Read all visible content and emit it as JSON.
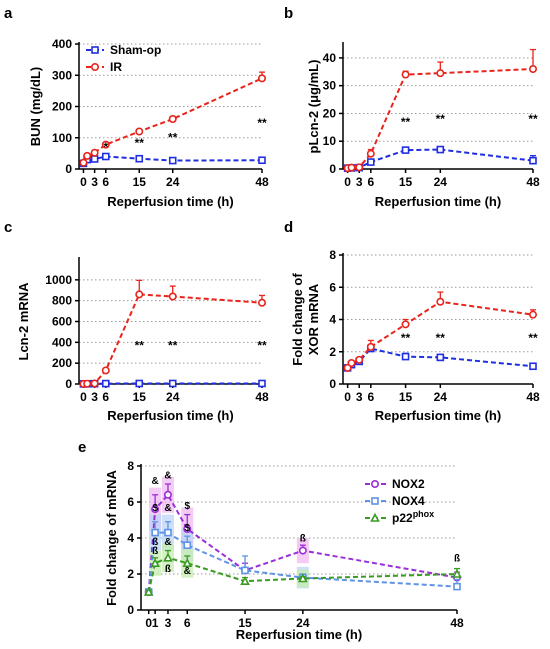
{
  "colors": {
    "sham": "#1f2ee0",
    "ir": "#e8241c",
    "nox2": "#9a2fd6",
    "nox4": "#5f93e6",
    "p22": "#3a9a22",
    "nox2_shade": "#efb9f0",
    "nox4_shade": "#bcd6f5",
    "p22_shade": "#c6ecb0",
    "grid": "#9a9a9a"
  },
  "chart_data": [
    {
      "id": "a",
      "panel_label": "a",
      "type": "line",
      "xlabel": "Reperfusion time (h)",
      "ylabel": "BUN (mg/dL)",
      "ylim": [
        0,
        400
      ],
      "y_ticks": [
        0,
        100,
        200,
        300,
        400
      ],
      "x_ticks": [
        0,
        3,
        6,
        15,
        24,
        48
      ],
      "x_tick_labels": [
        "0",
        "3",
        "6",
        "15",
        "24",
        "48"
      ],
      "grid": true,
      "legend": "top-left",
      "series": [
        {
          "name": "Sham-op",
          "color_key": "sham",
          "marker": "square",
          "x": [
            0,
            1,
            3,
            6,
            15,
            24,
            48
          ],
          "y": [
            18,
            30,
            32,
            40,
            33,
            27,
            28
          ],
          "err": [
            2,
            3,
            3,
            3,
            3,
            2,
            2
          ]
        },
        {
          "name": "IR",
          "color_key": "ir",
          "marker": "circle",
          "x": [
            0,
            1,
            3,
            6,
            15,
            24,
            48
          ],
          "y": [
            20,
            42,
            52,
            78,
            120,
            160,
            290
          ],
          "err": [
            2,
            3,
            4,
            5,
            6,
            8,
            20
          ]
        }
      ],
      "annotations": [
        {
          "text": "*",
          "x": 6,
          "y": 58
        },
        {
          "text": "**",
          "x": 15,
          "y": 70
        },
        {
          "text": "**",
          "x": 24,
          "y": 88
        },
        {
          "text": "**",
          "x": 48,
          "y": 135
        }
      ]
    },
    {
      "id": "b",
      "panel_label": "b",
      "type": "line",
      "xlabel": "Reperfusion time (h)",
      "ylabel": "pLcn-2 (μg/mL)",
      "ylim": [
        0,
        45
      ],
      "y_ticks": [
        0,
        10,
        20,
        30,
        40
      ],
      "x_ticks": [
        0,
        3,
        6,
        15,
        24,
        48
      ],
      "x_tick_labels": [
        "0",
        "3",
        "6",
        "15",
        "24",
        "48"
      ],
      "grid": true,
      "series": [
        {
          "name": "",
          "color_key": "sham",
          "marker": "square",
          "x": [
            0,
            1,
            3,
            6,
            15,
            24,
            48
          ],
          "y": [
            0.3,
            0.4,
            0.5,
            2.5,
            6.8,
            7,
            3
          ],
          "err": [
            0.1,
            0.1,
            0.1,
            0.4,
            0.7,
            0.5,
            1.8
          ]
        },
        {
          "name": "",
          "color_key": "ir",
          "marker": "circle",
          "x": [
            0,
            1,
            3,
            6,
            15,
            24,
            48
          ],
          "y": [
            0.3,
            0.5,
            0.6,
            5.5,
            34,
            34.5,
            36
          ],
          "err": [
            0.1,
            0.1,
            0.2,
            1.5,
            1.2,
            4,
            7
          ]
        }
      ],
      "annotations": [
        {
          "text": "**",
          "x": 15,
          "y": 15.5
        },
        {
          "text": "**",
          "x": 24,
          "y": 16.5
        },
        {
          "text": "**",
          "x": 48,
          "y": 16.5
        }
      ]
    },
    {
      "id": "c",
      "panel_label": "c",
      "type": "line",
      "xlabel": "Reperfusion time (h)",
      "ylabel": "Lcn-2 mRNA",
      "ylim": [
        0,
        1200
      ],
      "y_ticks": [
        0,
        200,
        400,
        600,
        800,
        1000
      ],
      "x_ticks": [
        0,
        3,
        6,
        15,
        24,
        48
      ],
      "x_tick_labels": [
        "0",
        "3",
        "6",
        "15",
        "24",
        "48"
      ],
      "grid": true,
      "series": [
        {
          "name": "",
          "color_key": "sham",
          "marker": "square",
          "x": [
            0,
            1,
            3,
            6,
            15,
            24,
            48
          ],
          "y": [
            1,
            2,
            3,
            4,
            5,
            5,
            5
          ],
          "err": [
            0.5,
            0.5,
            0.5,
            1,
            1,
            1,
            1
          ]
        },
        {
          "name": "",
          "color_key": "ir",
          "marker": "circle",
          "x": [
            0,
            1,
            3,
            6,
            15,
            24,
            48
          ],
          "y": [
            1,
            3,
            5,
            130,
            860,
            840,
            780
          ],
          "err": [
            0.5,
            1,
            2,
            15,
            135,
            100,
            70
          ]
        }
      ],
      "annotations": [
        {
          "text": "**",
          "x": 15,
          "y": 330
        },
        {
          "text": "**",
          "x": 24,
          "y": 330
        },
        {
          "text": "**",
          "x": 48,
          "y": 330
        }
      ]
    },
    {
      "id": "d",
      "panel_label": "d",
      "type": "line",
      "xlabel": "Reperfusion time (h)",
      "ylabel": "Fold change of XOR mRNA",
      "ylabel_lines": [
        "Fold change of",
        "XOR mRNA"
      ],
      "ylim": [
        0,
        8
      ],
      "y_ticks": [
        0,
        2,
        4,
        6,
        8
      ],
      "x_ticks": [
        0,
        3,
        6,
        15,
        24,
        48
      ],
      "x_tick_labels": [
        "0",
        "3",
        "6",
        "15",
        "24",
        "48"
      ],
      "grid": true,
      "series": [
        {
          "name": "",
          "color_key": "sham",
          "marker": "square",
          "x": [
            0,
            1,
            3,
            6,
            15,
            24,
            48
          ],
          "y": [
            1,
            1.2,
            1.4,
            2.2,
            1.7,
            1.65,
            1.1
          ],
          "err": [
            0.05,
            0.1,
            0.1,
            0.2,
            0.2,
            0.1,
            0.1
          ]
        },
        {
          "name": "",
          "color_key": "ir",
          "marker": "circle",
          "x": [
            0,
            1,
            3,
            6,
            15,
            24,
            48
          ],
          "y": [
            1,
            1.3,
            1.5,
            2.3,
            3.7,
            5.1,
            4.3
          ],
          "err": [
            0.05,
            0.1,
            0.1,
            0.4,
            0.3,
            0.6,
            0.3
          ]
        }
      ],
      "annotations": [
        {
          "text": "**",
          "x": 15,
          "y": 2.6
        },
        {
          "text": "**",
          "x": 24,
          "y": 2.6
        },
        {
          "text": "**",
          "x": 48,
          "y": 2.6
        }
      ]
    },
    {
      "id": "e",
      "panel_label": "e",
      "type": "line",
      "xlabel": "Reperfusion time (h)",
      "ylabel": "Fold change of mRNA",
      "ylim": [
        0,
        8
      ],
      "y_ticks": [
        0,
        2,
        4,
        6,
        8
      ],
      "x_ticks": [
        0,
        1,
        3,
        6,
        15,
        24,
        48
      ],
      "x_tick_labels": [
        "0",
        "1",
        "3",
        "6",
        "15",
        "24",
        "48"
      ],
      "grid": true,
      "legend": "top-right",
      "series": [
        {
          "name": "NOX2",
          "color_key": "nox2",
          "shade_key": "nox2_shade",
          "marker": "circle",
          "x": [
            0,
            1,
            3,
            6,
            15,
            24,
            48
          ],
          "y": [
            1,
            5.6,
            6.4,
            4.5,
            2.2,
            3.3,
            1.8
          ],
          "err": [
            0.1,
            0.8,
            0.6,
            0.8,
            0.4,
            0.3,
            0.3
          ]
        },
        {
          "name": "NOX4",
          "color_key": "nox4",
          "shade_key": "nox4_shade",
          "marker": "square",
          "x": [
            0,
            1,
            3,
            6,
            15,
            24,
            48
          ],
          "y": [
            1,
            4.3,
            4.3,
            3.6,
            2.2,
            1.8,
            1.3
          ],
          "err": [
            0.1,
            0.6,
            0.6,
            0.5,
            0.8,
            0.2,
            0.4
          ]
        },
        {
          "name": "p22",
          "name_sup": "phox",
          "color_key": "p22",
          "shade_key": "p22_shade",
          "marker": "triangle",
          "x": [
            0,
            1,
            3,
            6,
            15,
            24,
            48
          ],
          "y": [
            1,
            2.6,
            2.9,
            2.6,
            1.6,
            1.75,
            2
          ],
          "err": [
            0.1,
            0.3,
            0.4,
            0.4,
            0.2,
            0.1,
            0.3
          ]
        }
      ],
      "annotations": [
        {
          "text": "&",
          "color_key": "nox2",
          "x": 1,
          "y": 7.0
        },
        {
          "text": "&",
          "color_key": "nox2",
          "x": 3,
          "y": 7.3
        },
        {
          "text": "$",
          "color_key": "nox2",
          "x": 6,
          "y": 5.6
        },
        {
          "text": "ß",
          "color_key": "nox2",
          "x": 24,
          "y": 3.8
        },
        {
          "text": "$",
          "color_key": "nox4",
          "x": 1,
          "y": 5.5
        },
        {
          "text": "&",
          "color_key": "nox4",
          "x": 3,
          "y": 5.5
        },
        {
          "text": "$",
          "color_key": "nox4",
          "x": 6,
          "y": 4.4
        },
        {
          "text": "ß",
          "color_key": "nox4",
          "x": 1,
          "y": 3.6
        },
        {
          "text": "&",
          "color_key": "nox4",
          "x": 3,
          "y": 3.6
        },
        {
          "text": "ß",
          "color_key": "p22",
          "x": 1,
          "y": 3.1
        },
        {
          "text": "ß",
          "color_key": "p22",
          "x": 3,
          "y": 2.1
        },
        {
          "text": "&",
          "color_key": "p22",
          "x": 6,
          "y": 2.0
        },
        {
          "text": "ß",
          "color_key": "p22",
          "x": 48,
          "y": 2.7
        }
      ]
    }
  ]
}
